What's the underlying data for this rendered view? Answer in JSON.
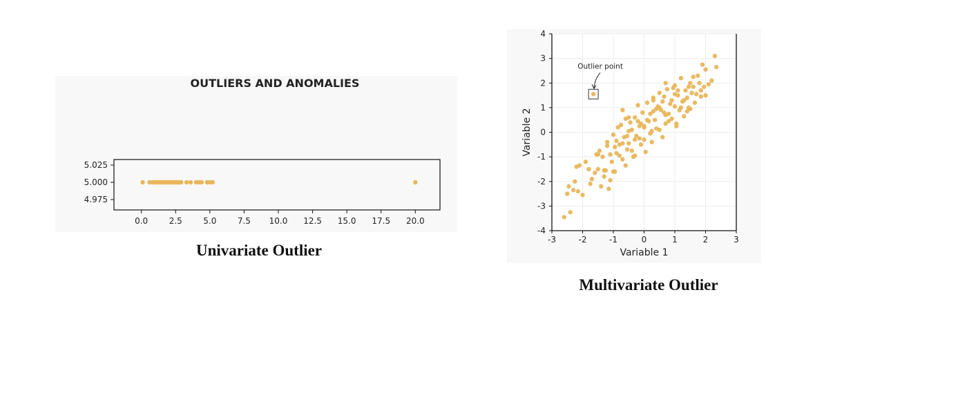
{
  "chart_data": [
    {
      "type": "scatter",
      "title": "OUTLIERS AND ANOMALIES",
      "xlabel": "",
      "ylabel": "",
      "xlim": [
        -2.0,
        21.8
      ],
      "ylim": [
        4.96,
        5.033
      ],
      "xticks": [
        "0.0",
        "2.5",
        "5.0",
        "7.5",
        "10.0",
        "12.5",
        "15.0",
        "17.5",
        "20.0"
      ],
      "yticks": [
        "5.025",
        "5.000",
        "4.975"
      ],
      "grid": false,
      "color": "#e8b65c",
      "x": [
        0.1,
        0.6,
        0.8,
        0.9,
        1.0,
        1.1,
        1.2,
        1.3,
        1.4,
        1.5,
        1.6,
        1.7,
        1.8,
        1.9,
        2.0,
        2.1,
        2.2,
        2.3,
        2.4,
        2.5,
        2.6,
        2.7,
        2.8,
        2.9,
        3.3,
        3.6,
        4.0,
        4.2,
        4.4,
        4.8,
        5.0,
        5.2,
        20.0
      ],
      "y": [
        5.0,
        5.0,
        5.0,
        5.0,
        5.0,
        5.0,
        5.0,
        5.0,
        5.0,
        5.0,
        5.0,
        5.0,
        5.0,
        5.0,
        5.0,
        5.0,
        5.0,
        5.0,
        5.0,
        5.0,
        5.0,
        5.0,
        5.0,
        5.0,
        5.0,
        5.0,
        5.0,
        5.0,
        5.0,
        5.0,
        5.0,
        5.0,
        5.0
      ]
    },
    {
      "type": "scatter",
      "title": "",
      "xlabel": "Variable 1",
      "ylabel": "Variable 2",
      "xlim": [
        -3,
        3
      ],
      "ylim": [
        -4,
        4
      ],
      "xticks": [
        "-3",
        "-2",
        "-1",
        "0",
        "1",
        "2",
        "3"
      ],
      "yticks": [
        "4",
        "3",
        "2",
        "1",
        "0",
        "-1",
        "-2",
        "-3",
        "-4"
      ],
      "grid": true,
      "color": "#e8b65c",
      "annotation": {
        "text": "Outlier point",
        "x": -1.65,
        "y": 1.55
      },
      "x": [
        -1.65,
        -2.6,
        -2.5,
        -2.45,
        -2.4,
        -2.3,
        -2.25,
        -2.2,
        -2.15,
        -2.1,
        -2.0,
        -1.9,
        -1.8,
        -1.75,
        -1.7,
        -1.6,
        -1.55,
        -1.5,
        -1.45,
        -1.4,
        -1.35,
        -1.3,
        -1.25,
        -1.2,
        -1.15,
        -1.1,
        -1.05,
        -1.0,
        -0.95,
        -0.9,
        -0.85,
        -0.8,
        -0.75,
        -0.7,
        -0.65,
        -0.6,
        -0.55,
        -0.5,
        -0.45,
        -0.4,
        -0.35,
        -0.3,
        -0.25,
        -0.2,
        -0.15,
        -0.1,
        -0.05,
        0.0,
        0.05,
        0.1,
        0.15,
        0.2,
        0.25,
        0.3,
        0.35,
        0.4,
        0.45,
        0.5,
        0.55,
        0.6,
        0.65,
        0.7,
        0.75,
        0.8,
        0.85,
        0.9,
        0.95,
        1.0,
        1.05,
        1.1,
        1.15,
        1.2,
        1.25,
        1.3,
        1.35,
        1.4,
        1.45,
        1.5,
        1.55,
        1.6,
        1.65,
        1.7,
        1.75,
        1.8,
        1.85,
        1.9,
        1.95,
        2.0,
        2.1,
        2.2,
        2.3,
        2.35,
        -1.3,
        -1.1,
        -0.9,
        -0.7,
        -0.5,
        -0.3,
        -0.1,
        0.1,
        0.3,
        0.5,
        0.7,
        0.9,
        1.1,
        1.3,
        -1.2,
        -0.8,
        -0.6,
        -0.4,
        -0.2,
        0.0,
        0.2,
        0.4,
        0.6,
        0.8,
        1.0,
        1.2,
        1.4,
        1.6,
        -0.95,
        -0.55,
        -0.15,
        0.25,
        0.65,
        1.05,
        1.45,
        1.85,
        -1.5,
        -1.0,
        -0.5,
        0.0,
        0.5,
        1.0,
        1.5,
        2.0,
        -0.3,
        0.3,
        0.7,
        -0.7
      ],
      "y": [
        1.55,
        -3.45,
        -2.5,
        -2.2,
        -3.25,
        -2.35,
        -2.0,
        -1.4,
        -2.4,
        -1.35,
        -2.55,
        -1.2,
        -1.5,
        -2.1,
        -1.9,
        -1.65,
        -0.9,
        -1.5,
        -0.75,
        -2.2,
        -1.0,
        -1.8,
        -1.55,
        -0.4,
        -2.3,
        -0.9,
        -1.2,
        -0.1,
        -1.6,
        -0.35,
        0.2,
        -0.5,
        0.3,
        -1.1,
        -0.2,
        0.55,
        -0.7,
        -0.45,
        0.4,
        0.1,
        -1.0,
        0.6,
        -0.15,
        1.1,
        0.25,
        -0.5,
        0.8,
        0.2,
        -0.8,
        1.2,
        0.45,
        0.75,
        -0.4,
        1.3,
        0.5,
        0.15,
        1.05,
        1.6,
        0.9,
        -0.2,
        1.45,
        0.35,
        1.75,
        0.75,
        1.15,
        0.55,
        1.8,
        1.05,
        0.25,
        1.5,
        0.9,
        2.2,
        1.25,
        0.65,
        1.7,
        1.4,
        1.0,
        2.0,
        1.6,
        1.85,
        1.2,
        1.55,
        2.3,
        2.0,
        1.7,
        2.75,
        1.85,
        2.55,
        1.95,
        2.1,
        3.1,
        2.65,
        -1.55,
        -1.95,
        -0.85,
        -0.45,
        0.05,
        -0.3,
        0.35,
        0.5,
        0.85,
        1.0,
        0.7,
        1.3,
        1.7,
        1.3,
        -0.55,
        -0.95,
        -1.35,
        -0.75,
        0.45,
        0.25,
        -0.05,
        0.95,
        1.25,
        0.45,
        1.55,
        1.0,
        0.85,
        2.25,
        -0.6,
        -0.15,
        -0.25,
        0.05,
        0.8,
        0.35,
        1.85,
        1.45,
        -0.9,
        -1.6,
        0.6,
        -0.3,
        0.1,
        1.9,
        0.95,
        1.5,
        -0.95,
        1.4,
        2.0,
        0.9
      ]
    }
  ],
  "captions": {
    "univariate": "Univariate Outlier",
    "multivariate": "Multivariate Outlier"
  }
}
